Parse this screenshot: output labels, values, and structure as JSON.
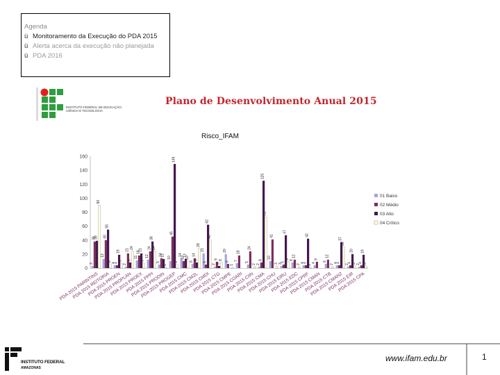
{
  "agenda": {
    "title": "Agenda",
    "items": [
      {
        "check": "ü",
        "label": "Monitoramento da Execução do PDA 2015",
        "state": "active"
      },
      {
        "check": "ü",
        "label": "Alerta acerca da execução não planejada",
        "state": "dim"
      },
      {
        "check": "ü",
        "label": "PDA 2016",
        "state": "dim"
      }
    ]
  },
  "header": {
    "institute_logo_text": "INSTITUTO FEDERAL DE EDUCAÇÃO, CIÊNCIA E TECNOLOGIA",
    "plan_title": "Plano de Desenvolvimento Anual 2015"
  },
  "footer": {
    "url": "www.ifam.edu.br",
    "page_number": "1",
    "logo_name": "INSTITUTO FEDERAL",
    "logo_sub": "AMAZONAS"
  },
  "colors": {
    "s1": "#a6a6de",
    "s2": "#7b2f5e",
    "s3": "#44184f",
    "s4": "#ffffe0",
    "title_red": "#c0262d"
  },
  "chart_data": {
    "type": "bar",
    "title": "Risco_IFAM",
    "ylim": [
      0,
      160
    ],
    "yticks": [
      0,
      20,
      40,
      60,
      80,
      100,
      120,
      140,
      160
    ],
    "grid": false,
    "legend_position": "right",
    "categories": [
      "PDA 2015 PARINTINS",
      "PDA 2015 REITORIA",
      "PDA 2015 PROEN",
      "PDA 2015 PROPLAN",
      "PDA 2015 PROEX",
      "PDA 2015 PPPI",
      "PDA 2015 PRODIN",
      "PDA 2015 PROGEP",
      "PDA 2015 CMC",
      "PDA 2015 CMZL",
      "PDA 2015 CMDI",
      "PDA 2015 CTG",
      "PDA 2015 CMPE",
      "PDA 2015 COARI",
      "PDA 2015 CIIN",
      "PDA 2015 CMA",
      "PDA 2015 CHU",
      "PDA 2015 EIRU",
      "PDA 2015 EDC",
      "PDA 2015 CPRF",
      "PDA 2015 CMAN",
      "PDA 2015 CTB",
      "PDA 2015 CMAN2",
      "PDA 2015 EIR",
      "PDA 2015 CPA"
    ],
    "category_labels_shown": [
      "PDA 2015 PARINTINS",
      "PDA 2015 REITORIA",
      "PDA 2015 PROEN",
      "PDA 2015 PROPLAN",
      "PDA 2015 PROEX",
      "PDA 2015 PPPI",
      "PDA 2015 PRODIN",
      "PDA 2015 PROGEP",
      "PDA 2015 CMC",
      "PDA 2015 CMZL",
      "PDA 2015 CMDI",
      "PDA 2015 CTG",
      "PDA 2015 CMPE",
      "PDA 2015 COARI",
      "PDA 2015 CIIN",
      "PDA 2015 CMA",
      "PDA 2015 CHU",
      "PDA 2015 EIRU",
      "PDA 2015 EDC",
      "PDA 2015 CPRF",
      "PDA 2015 CMAN",
      "PDA 2015 CTB",
      "PDA 2015 CMAN2",
      "PDA 2015 EIR",
      "PDA 2015 CPA"
    ],
    "series": [
      {
        "name": "01 Baixo",
        "values": [
          3,
          13,
          4,
          2,
          11,
          12,
          5,
          10,
          14,
          6,
          21,
          2,
          20,
          7,
          5,
          2,
          10,
          3,
          8,
          4,
          4,
          6,
          4,
          2,
          2
        ]
      },
      {
        "name": "02 Médio",
        "values": [
          38,
          40,
          4,
          21,
          18,
          24,
          14,
          45,
          10,
          14,
          5,
          9,
          6,
          18,
          24,
          8,
          41,
          5,
          12,
          4,
          9,
          12,
          4,
          4,
          4
        ]
      },
      {
        "name": "03 Alto",
        "values": [
          39,
          55,
          19,
          8,
          21,
          38,
          13,
          149,
          13,
          8,
          62,
          3,
          0,
          0,
          0,
          125,
          0,
          47,
          0,
          42,
          0,
          0,
          37,
          20,
          19
        ]
      },
      {
        "name": "04 Crítico",
        "values": [
          90,
          6,
          7,
          24,
          7,
          24,
          1,
          5,
          10,
          28,
          40,
          8,
          1,
          0,
          2,
          73,
          3,
          9,
          2,
          1,
          0,
          2,
          30,
          3,
          3
        ]
      }
    ],
    "data_labels": [
      [
        "3",
        "13",
        "4",
        "2",
        "11",
        "12",
        "5",
        "10",
        "14",
        "6",
        "21",
        "2",
        "20",
        "7",
        "5",
        "2",
        "10",
        "3",
        "8",
        "4",
        "4",
        "6",
        "4",
        "2",
        "2"
      ],
      [
        "38",
        "40",
        "4",
        "21",
        "18",
        "24",
        "14",
        "45",
        "10",
        "14",
        "5",
        "9",
        "6",
        "18",
        "24",
        "8",
        "41",
        "5",
        "12",
        "4",
        "9",
        "12",
        "4",
        "4",
        "4"
      ],
      [
        "39",
        "55",
        "19",
        "8",
        "21",
        "38",
        "13",
        "149",
        "13",
        "8",
        "62",
        "3",
        "",
        "",
        "",
        "125",
        "",
        "47",
        "",
        "42",
        "",
        "",
        "37",
        "20",
        "19"
      ],
      [
        "90",
        "6",
        "7",
        "24",
        "7",
        "24",
        "1",
        "5",
        "10",
        "28",
        "40",
        "8",
        "1",
        "",
        "2",
        "73",
        "3",
        "9",
        "2",
        "1",
        "",
        "2",
        "30",
        "3",
        "3"
      ]
    ]
  }
}
